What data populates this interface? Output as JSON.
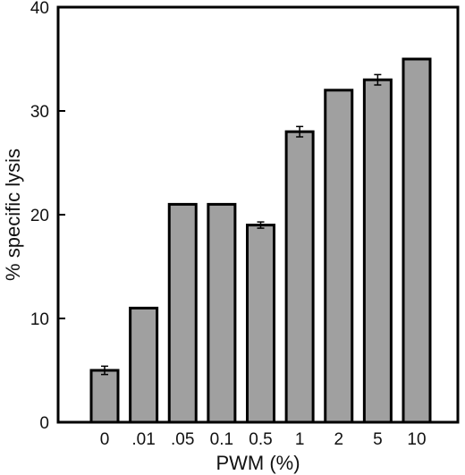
{
  "chart_data": {
    "type": "bar",
    "title": "",
    "xlabel": "PWM (%)",
    "ylabel": "% specific lysis",
    "categories": [
      "0",
      ".01",
      ".05",
      "0.1",
      "0.5",
      "1",
      "2",
      "5",
      "10"
    ],
    "values": [
      5,
      11,
      21,
      21,
      19,
      28,
      32,
      33,
      35
    ],
    "errors": [
      0.4,
      0,
      0,
      0,
      0.3,
      0.5,
      0,
      0.5,
      0
    ],
    "ylim": [
      0,
      40
    ],
    "yticks": [
      0,
      10,
      20,
      30,
      40
    ],
    "grid": false,
    "legend": "none",
    "bar_color": "#a0a0a0",
    "bar_edge_color": "#000000"
  }
}
